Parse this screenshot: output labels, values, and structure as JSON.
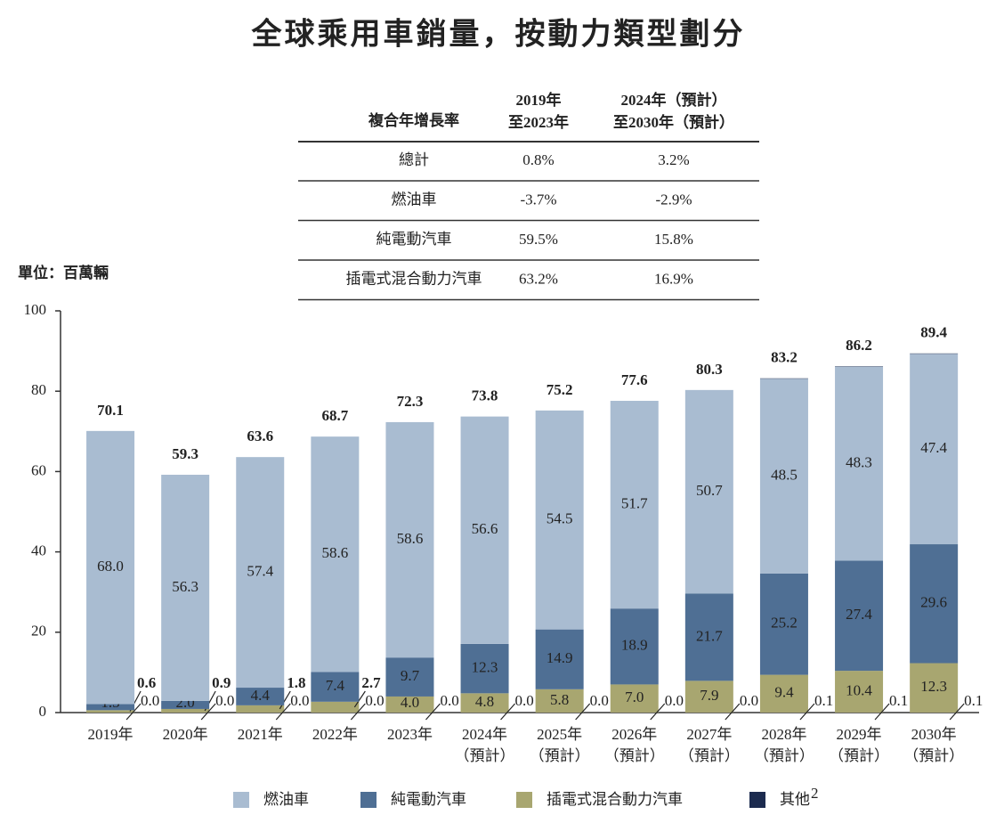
{
  "chart_data": {
    "type": "stacked-bar",
    "title": "全球乘用車銷量，按動力類型劃分",
    "unit_label": "單位：百萬輛",
    "table": {
      "columns": [
        [
          "複合年增長率"
        ],
        [
          "2019年",
          "至2023年"
        ],
        [
          "2024年（預計）",
          "至2030年（預計）"
        ]
      ],
      "rows": [
        [
          "總計",
          "0.8%",
          "3.2%"
        ],
        [
          "燃油車",
          "-3.7%",
          "-2.9%"
        ],
        [
          "純電動汽車",
          "59.5%",
          "15.8%"
        ],
        [
          "插電式混合動力汽車",
          "63.2%",
          "16.9%"
        ]
      ]
    },
    "categories": [
      [
        "2019年"
      ],
      [
        "2020年"
      ],
      [
        "2021年"
      ],
      [
        "2022年"
      ],
      [
        "2023年"
      ],
      [
        "2024年",
        "（預計）"
      ],
      [
        "2025年",
        "（預計）"
      ],
      [
        "2026年",
        "（預計）"
      ],
      [
        "2027年",
        "（預計）"
      ],
      [
        "2028年",
        "（預計）"
      ],
      [
        "2029年",
        "（預計）"
      ],
      [
        "2030年",
        "（預計）"
      ]
    ],
    "series": [
      {
        "name": "燃油車",
        "color": "#a9bcd1",
        "values": [
          68.0,
          56.3,
          57.4,
          58.6,
          58.6,
          56.6,
          54.5,
          51.7,
          50.7,
          48.5,
          48.3,
          47.4
        ],
        "value_labels": [
          "68.0",
          "56.3",
          "57.4",
          "58.6",
          "58.6",
          "56.6",
          "54.5",
          "51.7",
          "50.7",
          "48.5",
          "48.3",
          "47.4"
        ]
      },
      {
        "name": "純電動汽車",
        "color": "#4f6f94",
        "values": [
          1.5,
          2.0,
          4.4,
          7.4,
          9.7,
          12.3,
          14.9,
          18.9,
          21.7,
          25.2,
          27.4,
          29.6
        ],
        "value_labels": [
          "1.5",
          "2.0",
          "4.4",
          "7.4",
          "9.7",
          "12.3",
          "14.9",
          "18.9",
          "21.7",
          "25.2",
          "27.4",
          "29.6"
        ]
      },
      {
        "name": "插電式混合動力汽車",
        "color": "#a8a670",
        "values": [
          0.6,
          0.9,
          1.8,
          2.7,
          4.0,
          4.8,
          5.8,
          7.0,
          7.9,
          9.4,
          10.4,
          12.3
        ],
        "value_labels": [
          "0.6",
          "0.9",
          "1.8",
          "2.7",
          "4.0",
          "4.8",
          "5.8",
          "7.0",
          "7.9",
          "9.4",
          "10.4",
          "12.3"
        ]
      },
      {
        "name": "其他",
        "footnote_marker": "2",
        "color": "#1c2b4f",
        "values": [
          0.0,
          0.0,
          0.0,
          0.0,
          0.0,
          0.0,
          0.0,
          0.0,
          0.0,
          0.1,
          0.1,
          0.1
        ],
        "value_labels": [
          "0.0",
          "0.0",
          "0.0",
          "0.0",
          "0.0",
          "0.0",
          "0.0",
          "0.0",
          "0.0",
          "0.1",
          "0.1",
          "0.1"
        ]
      }
    ],
    "totals": [
      70.1,
      59.3,
      63.6,
      68.7,
      72.3,
      73.8,
      75.2,
      77.6,
      80.3,
      83.2,
      86.2,
      89.4
    ],
    "ylim": [
      0,
      100
    ],
    "yticks": [
      0,
      20,
      40,
      60,
      80,
      100
    ]
  }
}
